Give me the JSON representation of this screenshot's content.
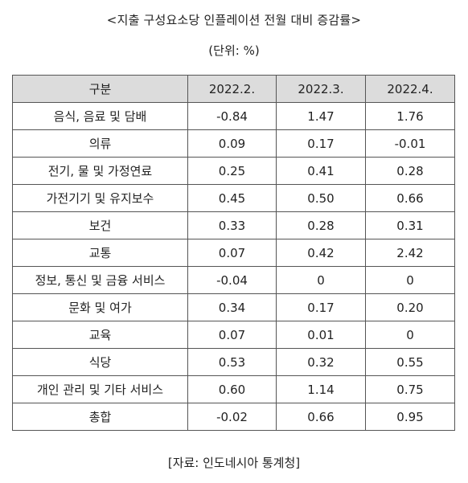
{
  "title": "<지출 구성요소당 인플레이션 전월 대비 증감률>",
  "unit": "(단위: %)",
  "table": {
    "headers": [
      "구분",
      "2022.2.",
      "2022.3.",
      "2022.4."
    ],
    "rows": [
      [
        "음식, 음료 및 담배",
        "-0.84",
        "1.47",
        "1.76"
      ],
      [
        "의류",
        "0.09",
        "0.17",
        "-0.01"
      ],
      [
        "전기, 물 및 가정연료",
        "0.25",
        "0.41",
        "0.28"
      ],
      [
        "가전기기 및 유지보수",
        "0.45",
        "0.50",
        "0.66"
      ],
      [
        "보건",
        "0.33",
        "0.28",
        "0.31"
      ],
      [
        "교통",
        "0.07",
        "0.42",
        "2.42"
      ],
      [
        "정보, 통신 및 금융 서비스",
        "-0.04",
        "0",
        "0"
      ],
      [
        "문화 및 여가",
        "0.34",
        "0.17",
        "0.20"
      ],
      [
        "교육",
        "0.07",
        "0.01",
        "0"
      ],
      [
        "식당",
        "0.53",
        "0.32",
        "0.55"
      ],
      [
        "개인 관리 및 기타 서비스",
        "0.60",
        "1.14",
        "0.75"
      ],
      [
        "총합",
        "-0.02",
        "0.66",
        "0.95"
      ]
    ]
  },
  "source": "[자료: 인도네시아 통계청]"
}
